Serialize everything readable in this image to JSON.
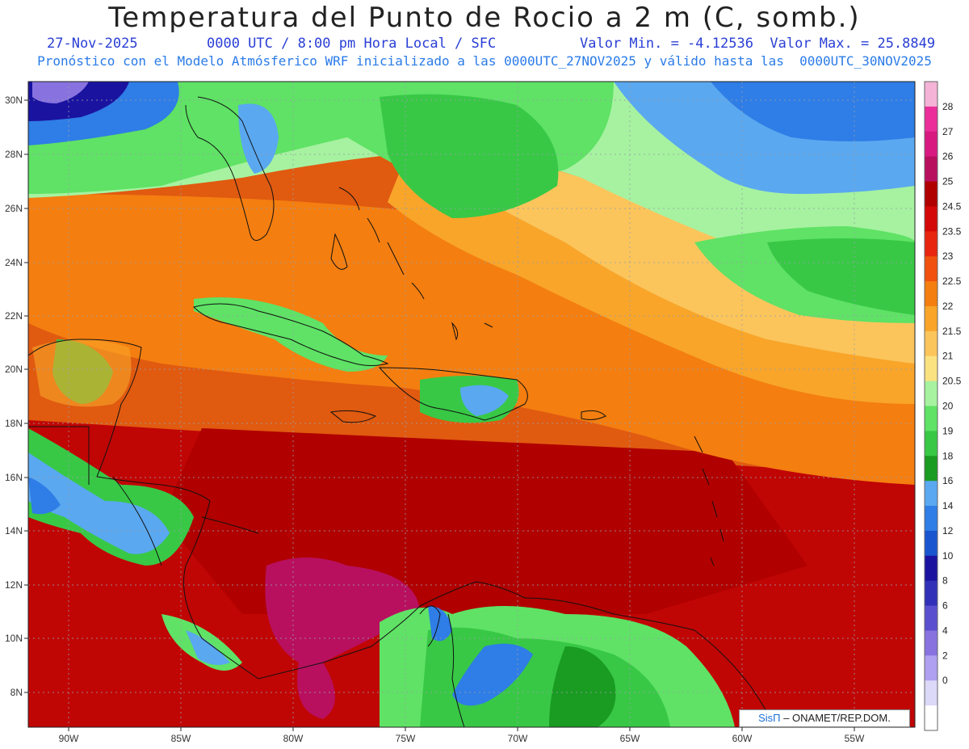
{
  "title": "Temperatura del Punto de Rocio a 2 m (C, somb.)",
  "subtitle": {
    "date": "27-Nov-2025",
    "time": "0000 UTC / 8:00 pm Hora Local / SFC",
    "minmax": "Valor Min. = -4.12536  Valor Max. = 25.8849"
  },
  "forecast_line": "Pronóstico con el Modelo Atmósferico WRF inicializado a las 0000UTC_27NOV2025 y válido hasta las  0000UTC_30NOV2025",
  "lat_labels": [
    "30N",
    "28N",
    "26N",
    "24N",
    "22N",
    "20N",
    "18N",
    "16N",
    "14N",
    "12N",
    "10N",
    "8N"
  ],
  "lon_labels": [
    "90W",
    "85W",
    "80W",
    "75W",
    "70W",
    "65W",
    "60W",
    "55W"
  ],
  "colorbar": {
    "labels": [
      "28",
      "27",
      "26",
      "25",
      "24.5",
      "23.5",
      "23",
      "22.5",
      "22",
      "21.5",
      "21",
      "20.5",
      "20",
      "19",
      "18",
      "16",
      "14",
      "12",
      "10",
      "8",
      "6",
      "4",
      "2",
      "0"
    ],
    "colors": [
      "#f4b3d7",
      "#ea2f9a",
      "#d81a80",
      "#b8105f",
      "#b00000",
      "#d40808",
      "#e8250f",
      "#f0510f",
      "#f47e10",
      "#f8a52a",
      "#fbc55c",
      "#fbe281",
      "#a6f2a0",
      "#5fe265",
      "#38c846",
      "#1a9b22",
      "#5aa8f0",
      "#2f7de6",
      "#1a55d0",
      "#1a13a0",
      "#3030b8",
      "#5a50cf",
      "#8872e0",
      "#b0a0f0",
      "#dcd8f8",
      "#ffffff"
    ]
  },
  "credit": {
    "brand": "SisΠ",
    "text": " – ONAMET/REP.DOM."
  }
}
